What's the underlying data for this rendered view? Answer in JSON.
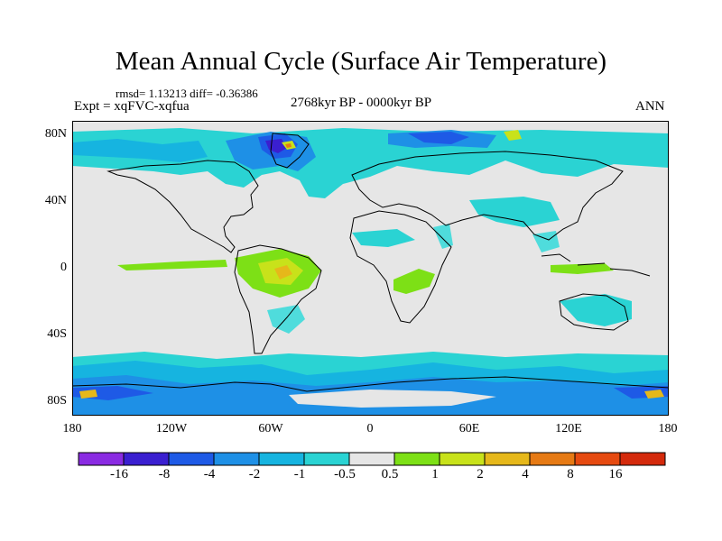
{
  "title": "Mean Annual Cycle (Surface Air Temperature)",
  "stats": "rmsd= 1.13213 diff= -0.36386",
  "period": "2768kyr BP - 0000kyr BP",
  "experiment": "Expt = xqFVC-xqfua",
  "season": "ANN",
  "lat_labels": [
    "80N",
    "40N",
    "0",
    "40S",
    "80S"
  ],
  "lon_labels": [
    "180",
    "120W",
    "60W",
    "0",
    "60E",
    "120E",
    "180"
  ],
  "colorbar": {
    "labels": [
      "-16",
      "-8",
      "-4",
      "-2",
      "-1",
      "-0.5",
      "0.5",
      "1",
      "2",
      "4",
      "8",
      "16"
    ],
    "colors": [
      "#8a2be2",
      "#3a1fd0",
      "#1e5ae6",
      "#1e90e6",
      "#16b4e0",
      "#2ad3d3",
      "#e6e6e6",
      "#7de016",
      "#c8e21a",
      "#e6b81a",
      "#e67a14",
      "#e64a10",
      "#d42a0c"
    ]
  },
  "map_colors": {
    "neutral": "#e6e6e6",
    "cyan": "#2ad3d3",
    "cyan_light": "#4fdcdc",
    "sky": "#16b4e0",
    "blue": "#1e90e6",
    "deep_blue": "#1e5ae6",
    "indigo": "#3a1fd0",
    "green": "#7de016",
    "lime": "#c8e21a",
    "yellow": "#e6b81a",
    "orange": "#e67a14",
    "coast": "#000000"
  }
}
